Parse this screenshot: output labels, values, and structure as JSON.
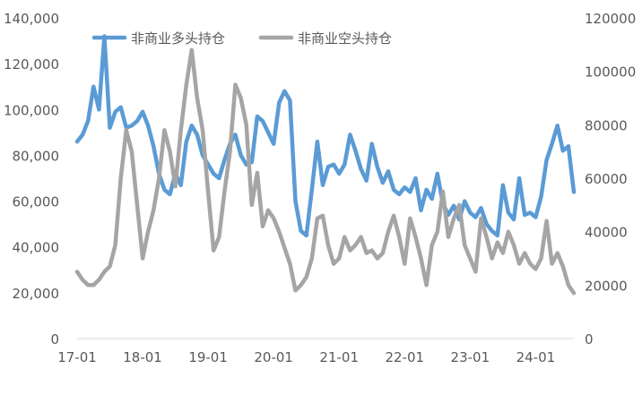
{
  "chart_data": {
    "type": "line",
    "title": "",
    "xlabel": "",
    "ylabel": "",
    "y2label": "",
    "legend_position": "top-left",
    "grid": false,
    "x_tick_labels": [
      "17-01",
      "18-01",
      "19-01",
      "20-01",
      "21-01",
      "22-01",
      "23-01",
      "24-01"
    ],
    "x_range": [
      "2017-01",
      "2024-08"
    ],
    "ylim": [
      0,
      140000
    ],
    "y_ticks": [
      0,
      20000,
      40000,
      60000,
      80000,
      100000,
      120000,
      140000
    ],
    "y_tick_labels": [
      "0",
      "20,000",
      "40,000",
      "60,000",
      "80,000",
      "100,000",
      "120,000",
      "140,000"
    ],
    "y2lim": [
      0,
      120000
    ],
    "y2_ticks": [
      0,
      20000,
      40000,
      60000,
      80000,
      100000,
      120000
    ],
    "y2_tick_labels": [
      "0",
      "20000",
      "40000",
      "60000",
      "80000",
      "100000",
      "120000"
    ],
    "series": [
      {
        "name": "非商业多头持仓",
        "axis": "left",
        "color": "#5b9bd5",
        "points": [
          [
            "2017-01",
            86000
          ],
          [
            "2017-02",
            89000
          ],
          [
            "2017-03",
            95000
          ],
          [
            "2017-04",
            110000
          ],
          [
            "2017-05",
            100000
          ],
          [
            "2017-06",
            132000
          ],
          [
            "2017-07",
            92000
          ],
          [
            "2017-08",
            99000
          ],
          [
            "2017-09",
            101000
          ],
          [
            "2017-10",
            92000
          ],
          [
            "2017-11",
            93000
          ],
          [
            "2017-12",
            95000
          ],
          [
            "2018-01",
            99000
          ],
          [
            "2018-02",
            93000
          ],
          [
            "2018-03",
            84000
          ],
          [
            "2018-04",
            72000
          ],
          [
            "2018-05",
            65000
          ],
          [
            "2018-06",
            63000
          ],
          [
            "2018-07",
            72000
          ],
          [
            "2018-08",
            67000
          ],
          [
            "2018-09",
            86000
          ],
          [
            "2018-10",
            93000
          ],
          [
            "2018-11",
            89000
          ],
          [
            "2018-12",
            80000
          ],
          [
            "2019-01",
            76000
          ],
          [
            "2019-02",
            72000
          ],
          [
            "2019-03",
            70000
          ],
          [
            "2019-04",
            78000
          ],
          [
            "2019-05",
            85000
          ],
          [
            "2019-06",
            89000
          ],
          [
            "2019-07",
            80000
          ],
          [
            "2019-08",
            76000
          ],
          [
            "2019-09",
            77000
          ],
          [
            "2019-10",
            97000
          ],
          [
            "2019-11",
            95000
          ],
          [
            "2019-12",
            90000
          ],
          [
            "2020-01",
            85000
          ],
          [
            "2020-02",
            103000
          ],
          [
            "2020-03",
            108000
          ],
          [
            "2020-04",
            104000
          ],
          [
            "2020-05",
            60000
          ],
          [
            "2020-06",
            47000
          ],
          [
            "2020-07",
            45000
          ],
          [
            "2020-08",
            65000
          ],
          [
            "2020-09",
            86000
          ],
          [
            "2020-10",
            67000
          ],
          [
            "2020-11",
            75000
          ],
          [
            "2020-12",
            76000
          ],
          [
            "2021-01",
            72000
          ],
          [
            "2021-02",
            76000
          ],
          [
            "2021-03",
            89000
          ],
          [
            "2021-04",
            82000
          ],
          [
            "2021-05",
            74000
          ],
          [
            "2021-06",
            69000
          ],
          [
            "2021-07",
            85000
          ],
          [
            "2021-08",
            75000
          ],
          [
            "2021-09",
            68000
          ],
          [
            "2021-10",
            73000
          ],
          [
            "2021-11",
            65000
          ],
          [
            "2021-12",
            63000
          ],
          [
            "2022-01",
            66000
          ],
          [
            "2022-02",
            64000
          ],
          [
            "2022-03",
            70000
          ],
          [
            "2022-04",
            56000
          ],
          [
            "2022-05",
            65000
          ],
          [
            "2022-06",
            61000
          ],
          [
            "2022-07",
            72000
          ],
          [
            "2022-08",
            59000
          ],
          [
            "2022-09",
            54000
          ],
          [
            "2022-10",
            58000
          ],
          [
            "2022-11",
            52000
          ],
          [
            "2022-12",
            60000
          ],
          [
            "2023-01",
            55000
          ],
          [
            "2023-02",
            53000
          ],
          [
            "2023-03",
            57000
          ],
          [
            "2023-04",
            50000
          ],
          [
            "2023-05",
            47000
          ],
          [
            "2023-06",
            45000
          ],
          [
            "2023-07",
            67000
          ],
          [
            "2023-08",
            55000
          ],
          [
            "2023-09",
            52000
          ],
          [
            "2023-10",
            70000
          ],
          [
            "2023-11",
            54000
          ],
          [
            "2023-12",
            55000
          ],
          [
            "2024-01",
            53000
          ],
          [
            "2024-02",
            62000
          ],
          [
            "2024-03",
            78000
          ],
          [
            "2024-04",
            85000
          ],
          [
            "2024-05",
            93000
          ],
          [
            "2024-06",
            82000
          ],
          [
            "2024-07",
            84000
          ],
          [
            "2024-08",
            64000
          ]
        ]
      },
      {
        "name": "非商业空头持仓",
        "axis": "right",
        "color": "#a5a5a5",
        "points": [
          [
            "2017-01",
            25000
          ],
          [
            "2017-02",
            22000
          ],
          [
            "2017-03",
            20000
          ],
          [
            "2017-04",
            20000
          ],
          [
            "2017-05",
            22000
          ],
          [
            "2017-06",
            25000
          ],
          [
            "2017-07",
            27000
          ],
          [
            "2017-08",
            35000
          ],
          [
            "2017-09",
            60000
          ],
          [
            "2017-10",
            78000
          ],
          [
            "2017-11",
            70000
          ],
          [
            "2017-12",
            50000
          ],
          [
            "2018-01",
            30000
          ],
          [
            "2018-02",
            40000
          ],
          [
            "2018-03",
            48000
          ],
          [
            "2018-04",
            60000
          ],
          [
            "2018-05",
            78000
          ],
          [
            "2018-06",
            70000
          ],
          [
            "2018-07",
            57000
          ],
          [
            "2018-08",
            78000
          ],
          [
            "2018-09",
            95000
          ],
          [
            "2018-10",
            108000
          ],
          [
            "2018-11",
            90000
          ],
          [
            "2018-12",
            78000
          ],
          [
            "2019-01",
            55000
          ],
          [
            "2019-02",
            33000
          ],
          [
            "2019-03",
            38000
          ],
          [
            "2019-04",
            55000
          ],
          [
            "2019-05",
            70000
          ],
          [
            "2019-06",
            95000
          ],
          [
            "2019-07",
            90000
          ],
          [
            "2019-08",
            80000
          ],
          [
            "2019-09",
            50000
          ],
          [
            "2019-10",
            62000
          ],
          [
            "2019-11",
            42000
          ],
          [
            "2019-12",
            48000
          ],
          [
            "2020-01",
            45000
          ],
          [
            "2020-02",
            40000
          ],
          [
            "2020-03",
            34000
          ],
          [
            "2020-04",
            28000
          ],
          [
            "2020-05",
            18000
          ],
          [
            "2020-06",
            20000
          ],
          [
            "2020-07",
            23000
          ],
          [
            "2020-08",
            30000
          ],
          [
            "2020-09",
            45000
          ],
          [
            "2020-10",
            46000
          ],
          [
            "2020-11",
            35000
          ],
          [
            "2020-12",
            28000
          ],
          [
            "2021-01",
            30000
          ],
          [
            "2021-02",
            38000
          ],
          [
            "2021-03",
            33000
          ],
          [
            "2021-04",
            35000
          ],
          [
            "2021-05",
            38000
          ],
          [
            "2021-06",
            32000
          ],
          [
            "2021-07",
            33000
          ],
          [
            "2021-08",
            30000
          ],
          [
            "2021-09",
            32000
          ],
          [
            "2021-10",
            40000
          ],
          [
            "2021-11",
            46000
          ],
          [
            "2021-12",
            38000
          ],
          [
            "2022-01",
            28000
          ],
          [
            "2022-02",
            45000
          ],
          [
            "2022-03",
            38000
          ],
          [
            "2022-04",
            30000
          ],
          [
            "2022-05",
            20000
          ],
          [
            "2022-06",
            35000
          ],
          [
            "2022-07",
            40000
          ],
          [
            "2022-08",
            55000
          ],
          [
            "2022-09",
            38000
          ],
          [
            "2022-10",
            45000
          ],
          [
            "2022-11",
            50000
          ],
          [
            "2022-12",
            35000
          ],
          [
            "2023-01",
            30000
          ],
          [
            "2023-02",
            25000
          ],
          [
            "2023-03",
            45000
          ],
          [
            "2023-04",
            38000
          ],
          [
            "2023-05",
            30000
          ],
          [
            "2023-06",
            36000
          ],
          [
            "2023-07",
            32000
          ],
          [
            "2023-08",
            40000
          ],
          [
            "2023-09",
            35000
          ],
          [
            "2023-10",
            28000
          ],
          [
            "2023-11",
            32000
          ],
          [
            "2023-12",
            28000
          ],
          [
            "2024-01",
            26000
          ],
          [
            "2024-02",
            30000
          ],
          [
            "2024-03",
            44000
          ],
          [
            "2024-04",
            28000
          ],
          [
            "2024-05",
            32000
          ],
          [
            "2024-06",
            27000
          ],
          [
            "2024-07",
            20000
          ],
          [
            "2024-08",
            17000
          ]
        ]
      }
    ]
  }
}
